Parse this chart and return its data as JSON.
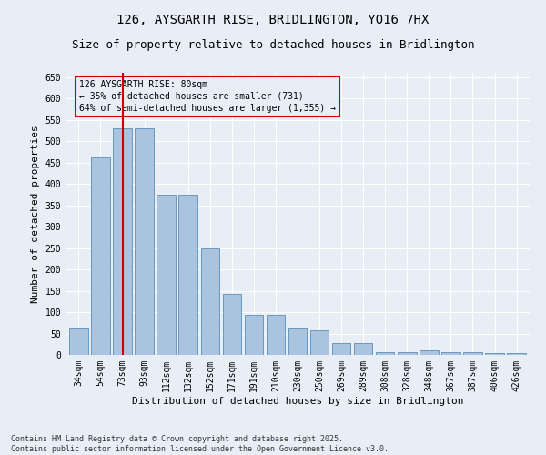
{
  "title1": "126, AYSGARTH RISE, BRIDLINGTON, YO16 7HX",
  "title2": "Size of property relative to detached houses in Bridlington",
  "xlabel": "Distribution of detached houses by size in Bridlington",
  "ylabel": "Number of detached properties",
  "categories": [
    "34sqm",
    "54sqm",
    "73sqm",
    "93sqm",
    "112sqm",
    "132sqm",
    "152sqm",
    "171sqm",
    "191sqm",
    "210sqm",
    "230sqm",
    "250sqm",
    "269sqm",
    "289sqm",
    "308sqm",
    "328sqm",
    "348sqm",
    "367sqm",
    "387sqm",
    "406sqm",
    "426sqm"
  ],
  "values": [
    63,
    463,
    530,
    530,
    375,
    375,
    250,
    142,
    93,
    93,
    63,
    57,
    28,
    28,
    7,
    7,
    10,
    7,
    7,
    5,
    5
  ],
  "bar_color": "#aac4e0",
  "bar_edge_color": "#5a8db8",
  "bg_color": "#e8eef5",
  "vline_x_index": 2,
  "vline_color": "#cc0000",
  "annotation_text": "126 AYSGARTH RISE: 80sqm\n← 35% of detached houses are smaller (731)\n64% of semi-detached houses are larger (1,355) →",
  "annotation_box_edgecolor": "#cc0000",
  "ylim": [
    0,
    660
  ],
  "yticks": [
    0,
    50,
    100,
    150,
    200,
    250,
    300,
    350,
    400,
    450,
    500,
    550,
    600,
    650
  ],
  "footer1": "Contains HM Land Registry data © Crown copyright and database right 2025.",
  "footer2": "Contains public sector information licensed under the Open Government Licence v3.0.",
  "title_fontsize": 10,
  "subtitle_fontsize": 9,
  "axis_label_fontsize": 8,
  "tick_fontsize": 7,
  "footer_fontsize": 6
}
